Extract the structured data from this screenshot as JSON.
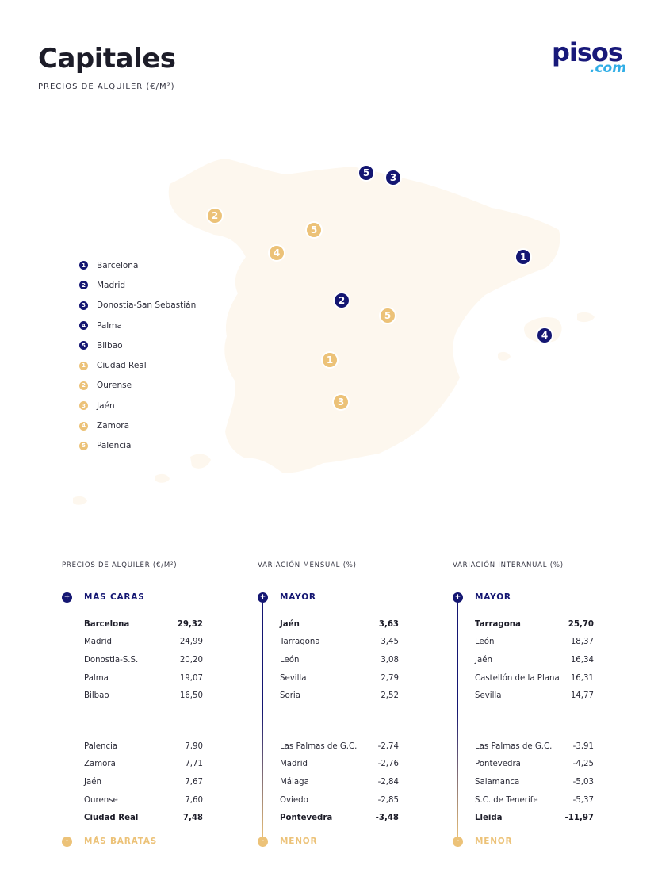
{
  "header": {
    "title": "Capitales",
    "subtitle": "PRECIOS DE ALQUILER (€/M²)"
  },
  "logo": {
    "main": "pisos",
    "sub": ".com"
  },
  "colors": {
    "navy": "#141672",
    "gold": "#ecc278",
    "map_fill": "#fdf7ee",
    "logo_blue": "#31aee6"
  },
  "map": {
    "markers": [
      {
        "n": "1",
        "color": "navy",
        "city": "Barcelona"
      },
      {
        "n": "2",
        "color": "navy",
        "city": "Madrid"
      },
      {
        "n": "3",
        "color": "navy",
        "city": "Donostia-San Sebastián"
      },
      {
        "n": "4",
        "color": "navy",
        "city": "Palma"
      },
      {
        "n": "5",
        "color": "navy",
        "city": "Bilbao"
      },
      {
        "n": "1",
        "color": "gold",
        "city": "Ciudad Real"
      },
      {
        "n": "2",
        "color": "gold",
        "city": "Ourense"
      },
      {
        "n": "3",
        "color": "gold",
        "city": "Jaén"
      },
      {
        "n": "4",
        "color": "gold",
        "city": "Zamora"
      },
      {
        "n": "5",
        "color": "gold",
        "city": "Palencia"
      }
    ]
  },
  "legend": [
    {
      "n": "1",
      "color": "navy",
      "label": "Barcelona"
    },
    {
      "n": "2",
      "color": "navy",
      "label": "Madrid"
    },
    {
      "n": "3",
      "color": "navy",
      "label": "Donostia-San Sebastián"
    },
    {
      "n": "4",
      "color": "navy",
      "label": "Palma"
    },
    {
      "n": "5",
      "color": "navy",
      "label": "Bilbao"
    },
    {
      "n": "1",
      "color": "gold",
      "label": "Ciudad Real"
    },
    {
      "n": "2",
      "color": "gold",
      "label": "Ourense"
    },
    {
      "n": "3",
      "color": "gold",
      "label": "Jaén"
    },
    {
      "n": "4",
      "color": "gold",
      "label": "Zamora"
    },
    {
      "n": "5",
      "color": "gold",
      "label": "Palencia"
    }
  ],
  "columns": [
    {
      "heading": "PRECIOS DE ALQUILER (€/M²)",
      "top_symbol": "+",
      "top_label": "MÁS CARAS",
      "bottom_symbol": "-",
      "bottom_label": "MÁS BARATAS",
      "top_rows": [
        {
          "name": "Barcelona",
          "value": "29,32",
          "bold": true
        },
        {
          "name": "Madrid",
          "value": "24,99"
        },
        {
          "name": "Donostia-S.S.",
          "value": "20,20"
        },
        {
          "name": "Palma",
          "value": "19,07"
        },
        {
          "name": "Bilbao",
          "value": "16,50"
        }
      ],
      "bottom_rows": [
        {
          "name": "Palencia",
          "value": "7,90"
        },
        {
          "name": "Zamora",
          "value": "7,71"
        },
        {
          "name": "Jaén",
          "value": "7,67"
        },
        {
          "name": "Ourense",
          "value": "7,60"
        },
        {
          "name": "Ciudad Real",
          "value": "7,48",
          "bold": true
        }
      ]
    },
    {
      "heading": "VARIACIÓN MENSUAL (%)",
      "top_symbol": "+",
      "top_label": "MAYOR",
      "bottom_symbol": "-",
      "bottom_label": "MENOR",
      "top_rows": [
        {
          "name": "Jaén",
          "value": "3,63",
          "bold": true
        },
        {
          "name": "Tarragona",
          "value": "3,45"
        },
        {
          "name": "León",
          "value": "3,08"
        },
        {
          "name": "Sevilla",
          "value": "2,79"
        },
        {
          "name": "Soria",
          "value": "2,52"
        }
      ],
      "bottom_rows": [
        {
          "name": "Las Palmas de G.C.",
          "value": "-2,74"
        },
        {
          "name": "Madrid",
          "value": "-2,76"
        },
        {
          "name": "Málaga",
          "value": "-2,84"
        },
        {
          "name": "Oviedo",
          "value": "-2,85"
        },
        {
          "name": "Pontevedra",
          "value": "-3,48",
          "bold": true
        }
      ]
    },
    {
      "heading": "VARIACIÓN INTERANUAL (%)",
      "top_symbol": "+",
      "top_label": "MAYOR",
      "bottom_symbol": "-",
      "bottom_label": "MENOR",
      "top_rows": [
        {
          "name": "Tarragona",
          "value": "25,70",
          "bold": true
        },
        {
          "name": "León",
          "value": "18,37"
        },
        {
          "name": "Jaén",
          "value": "16,34"
        },
        {
          "name": "Castellón de la Plana",
          "value": "16,31"
        },
        {
          "name": "Sevilla",
          "value": "14,77"
        }
      ],
      "bottom_rows": [
        {
          "name": "Las Palmas de G.C.",
          "value": "-3,91"
        },
        {
          "name": "Pontevedra",
          "value": "-4,25"
        },
        {
          "name": "Salamanca",
          "value": "-5,03"
        },
        {
          "name": "S.C. de Tenerife",
          "value": "-5,37"
        },
        {
          "name": "Lleida",
          "value": "-11,97",
          "bold": true
        }
      ]
    }
  ]
}
